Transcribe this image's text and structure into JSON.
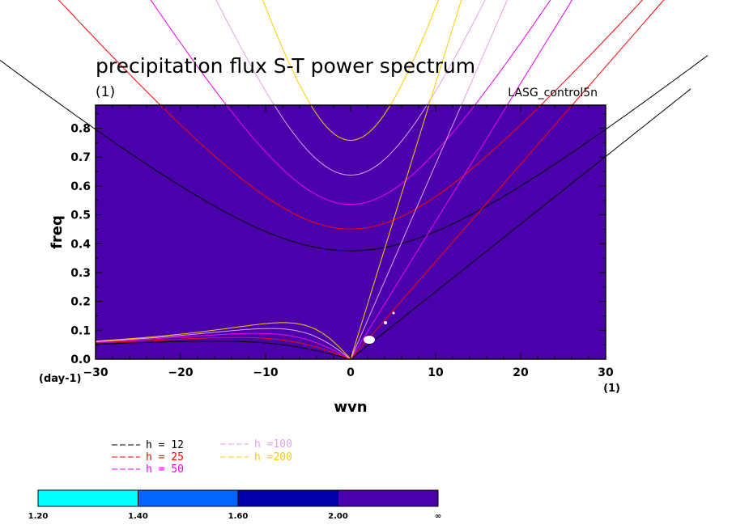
{
  "chart_data": {
    "type": "line",
    "title": "precipitation flux S-T power spectrum",
    "subtitle": "(1)",
    "model_label": "LASG_control5n",
    "xlabel": "wvn",
    "ylabel": "freq",
    "xunit": "(1)",
    "yunit": "(day-1)",
    "xlim": [
      -30,
      30
    ],
    "ylim": [
      0,
      0.88
    ],
    "xticks": [
      -30,
      -20,
      -10,
      0,
      10,
      20,
      30
    ],
    "xtick_labels": [
      "−30",
      "−20",
      "−10",
      "0",
      "10",
      "20",
      "30"
    ],
    "yticks": [
      0.0,
      0.1,
      0.2,
      0.3,
      0.4,
      0.5,
      0.6,
      0.7,
      0.8
    ],
    "ytick_labels": [
      "0.0",
      "0.1",
      "0.2",
      "0.3",
      "0.4",
      "0.5",
      "0.6",
      "0.7",
      "0.8"
    ],
    "background_fill": "#4a00aa",
    "series": [
      {
        "name": "h = 12",
        "h": 12,
        "color": "#000000"
      },
      {
        "name": "h = 25",
        "h": 25,
        "color": "#ff0000"
      },
      {
        "name": "h = 50",
        "h": 50,
        "color": "#ee00ee"
      },
      {
        "name": "h =100",
        "h": 100,
        "color": "#e6a0e6"
      },
      {
        "name": "h =200",
        "h": 200,
        "color": "#ffcc00"
      }
    ],
    "colorbar": {
      "labels": [
        "1.20",
        "1.40",
        "1.60",
        "2.00",
        "∞"
      ],
      "colors": [
        "#00ffff",
        "#0066ff",
        "#0000aa",
        "#4a00aa"
      ]
    }
  }
}
